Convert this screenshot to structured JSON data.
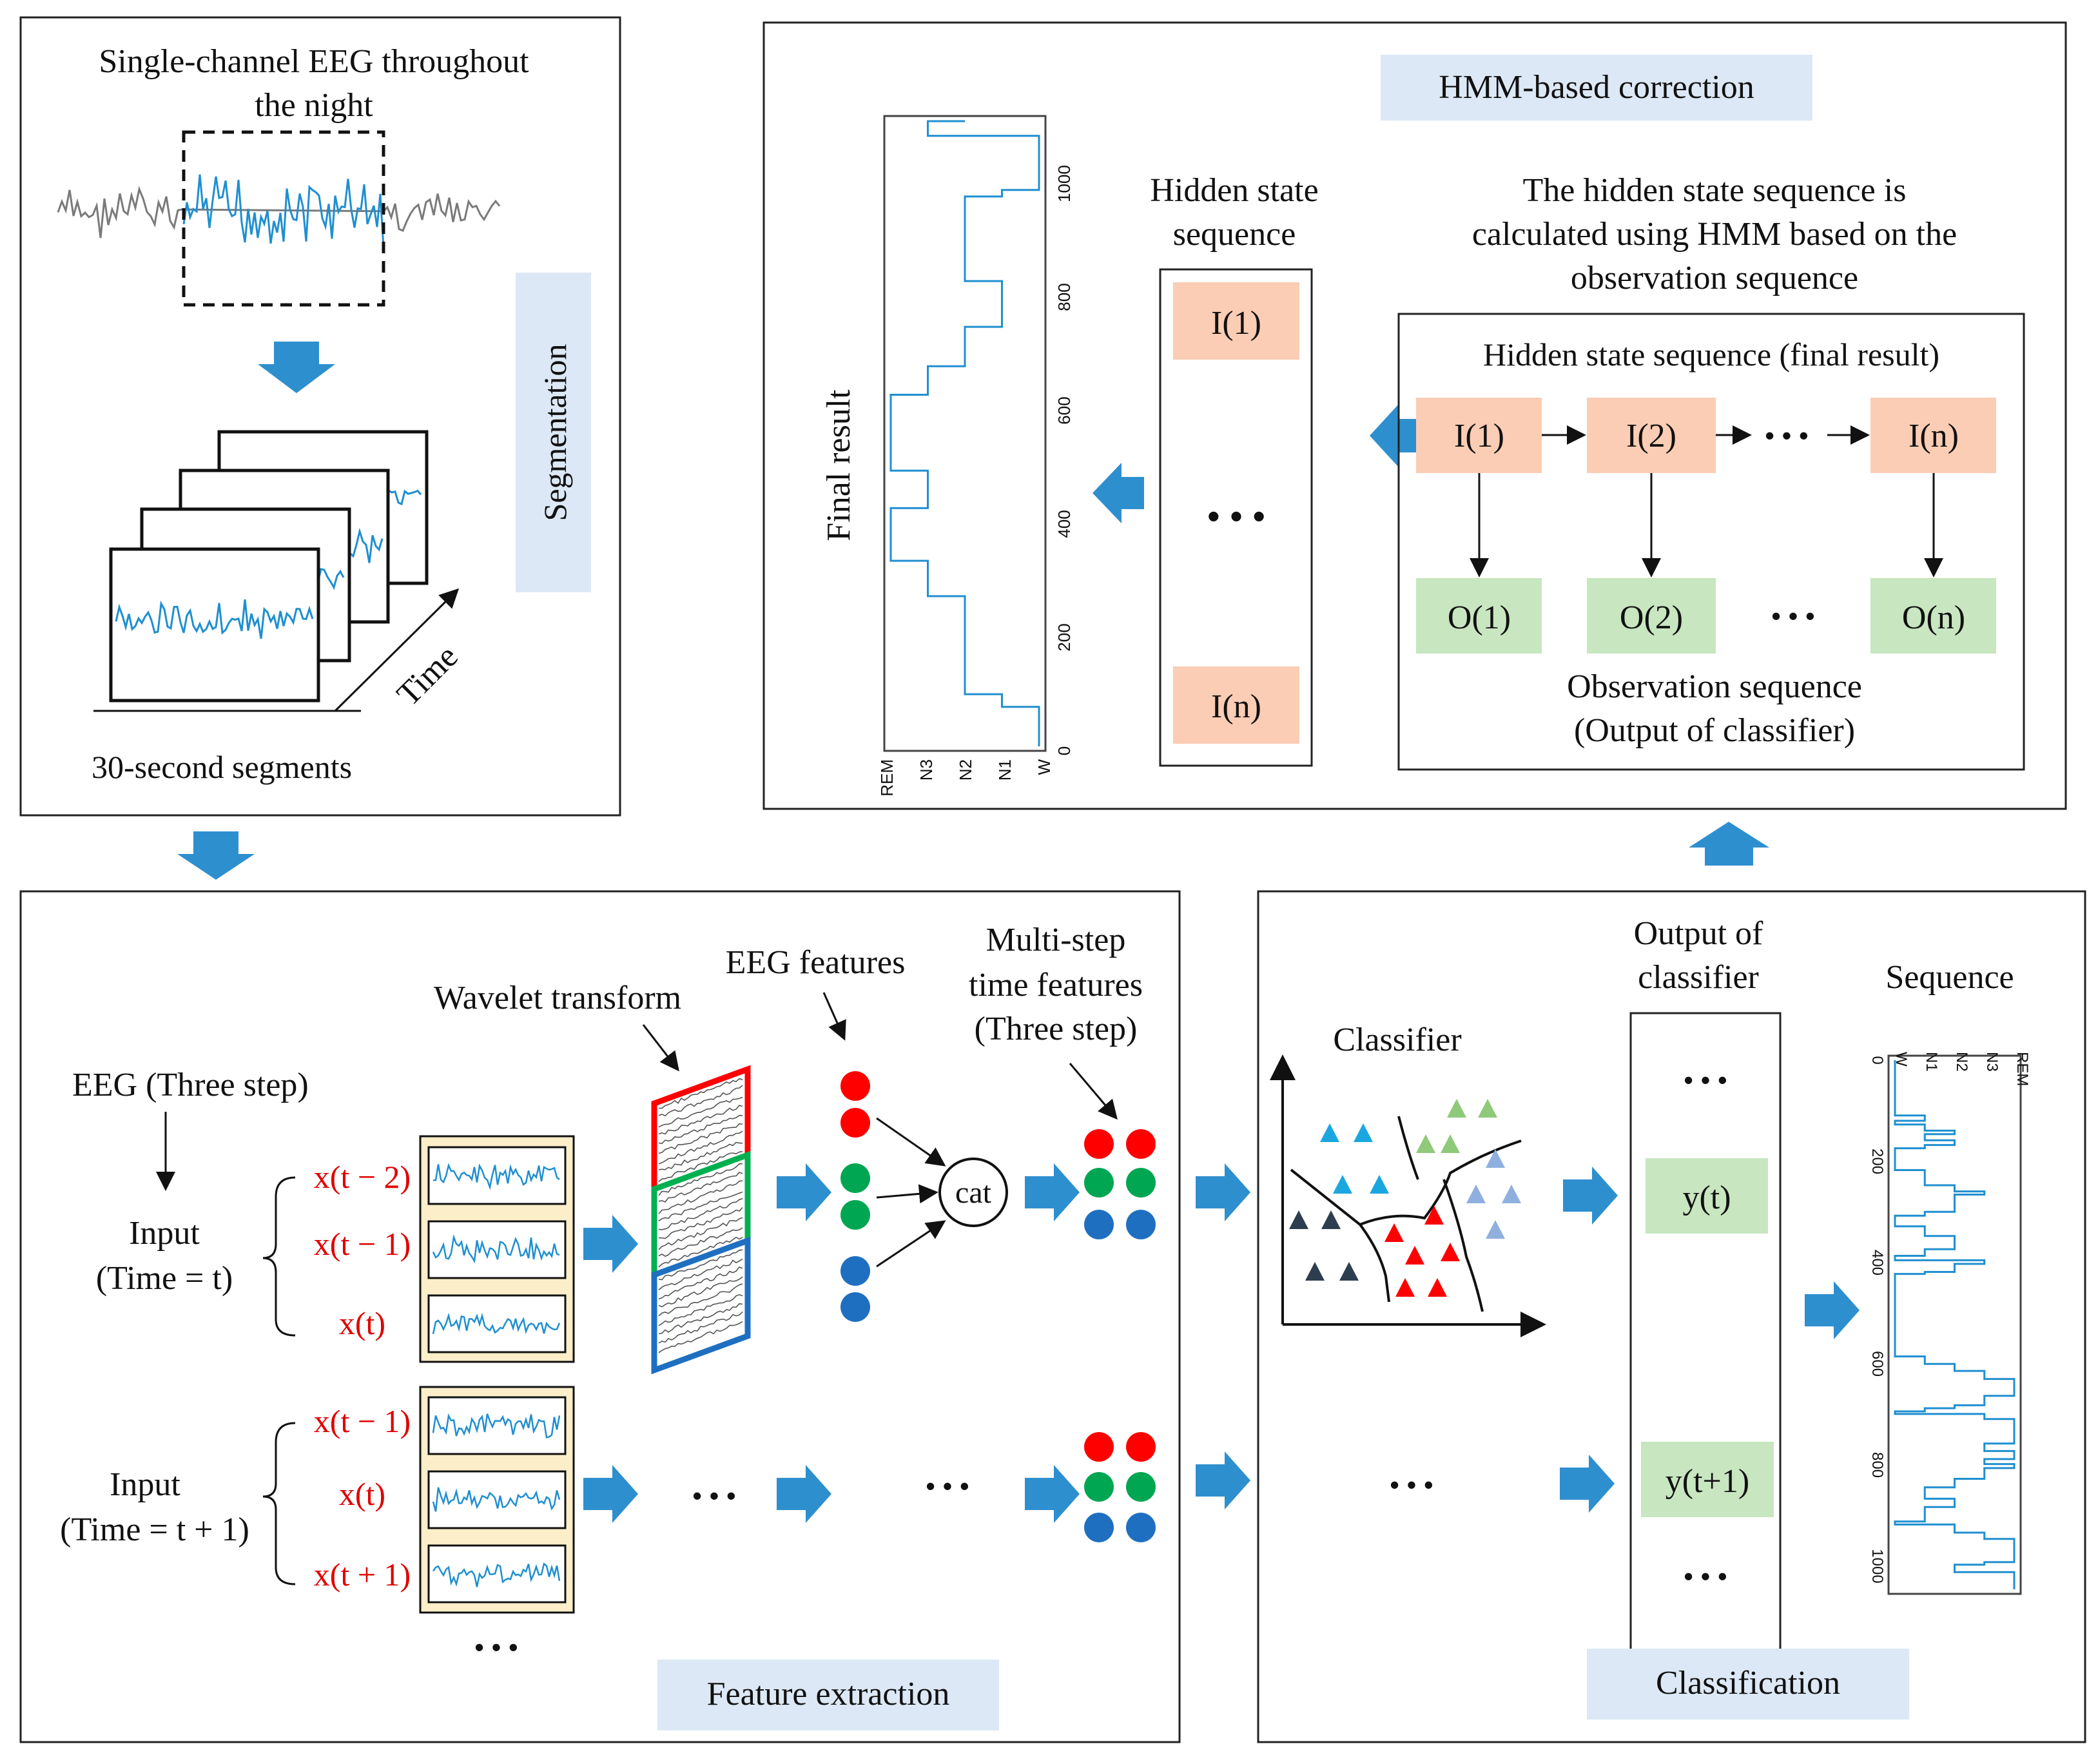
{
  "colors": {
    "blue_arrow": "#2e8fcf",
    "signal_blue": "#1f8fd0",
    "signal_gray": "#7a7a7a",
    "hidden_box": "#fbcdb4",
    "obs_box": "#c8e6c0",
    "label_box": "#dce8f5",
    "input_panel": "#fbeec9",
    "dot_red": "#ff0000",
    "dot_green": "#00a651",
    "dot_blue": "#1f6fc0",
    "tri_blue": "#1aa7e0",
    "tri_navy": "#2d3e50",
    "tri_red": "#ff0000",
    "tri_green": "#8fc97a",
    "tri_lightblue": "#8fb0de"
  },
  "segmentation": {
    "title_line1": "Single-channel  EEG throughout",
    "title_line2": "the night",
    "label": "Segmentation",
    "time_label": "Time",
    "segments_caption": "30-second segments"
  },
  "hmm": {
    "label": "HMM-based  correction",
    "final_result_label": "Final result",
    "hidden_seq_title_line1": "Hidden state",
    "hidden_seq_title_line2": "sequence",
    "hidden_first": "I(1)",
    "hidden_last": "I(n)",
    "dots": "• • •",
    "desc_line1": "The hidden state sequence is",
    "desc_line2": "calculated using HMM based on the",
    "desc_line3": "observation sequence",
    "inner_title": "Hidden state sequence (final result)",
    "hidden_states": [
      "I(1)",
      "I(2)",
      "I(n)"
    ],
    "observations": [
      "O(1)",
      "O(2)",
      "O(n)"
    ],
    "row_dots": "• • •",
    "obs_dots": "• • •",
    "obs_caption_line1": "Observation sequence",
    "obs_caption_line2": "(Output of classifier)",
    "y_ticks": [
      "0",
      "200",
      "400",
      "600",
      "800",
      "1000"
    ],
    "x_ticks": [
      "REM",
      "N3",
      "N2",
      "N1",
      "W"
    ]
  },
  "feature": {
    "label": "Feature extraction",
    "wavelet_label": "Wavelet transform",
    "eeg_features_label": "EEG features",
    "multistep_line1": "Multi-step",
    "multistep_line2": "time features",
    "multistep_line3": "(Three step)",
    "eeg_three_step": "EEG (Three step)",
    "input1_line1": "Input",
    "input1_line2": "(Time = t)",
    "input2_line1": "Input",
    "input2_line2": "(Time = t + 1)",
    "xs1": [
      "x(t − 2)",
      "x(t − 1)",
      "x(t)"
    ],
    "xs2": [
      "x(t − 1)",
      "x(t)",
      "x(t + 1)"
    ],
    "cat": "cat",
    "dots": "• • •"
  },
  "classification": {
    "label": "Classification",
    "classifier_label": "Classifier",
    "output_line1": "Output of",
    "output_line2": "classifier",
    "sequence_label": "Sequence",
    "yt": "y(t)",
    "yt1": "y(t+1)",
    "dots": "• • •",
    "seq_x_ticks": [
      "W",
      "N1",
      "N2",
      "N3",
      "REM"
    ],
    "seq_y_ticks": [
      "0",
      "200",
      "400",
      "600",
      "800",
      "1000"
    ]
  }
}
